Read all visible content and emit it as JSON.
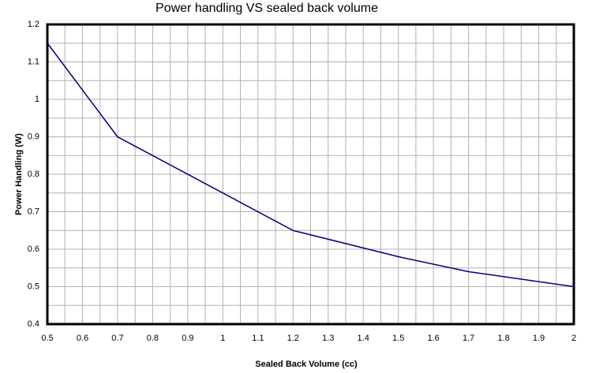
{
  "chart_data": {
    "type": "line",
    "title": "Power handling VS sealed back volume",
    "x_label": "Sealed Back Volume (cc)",
    "y_label": "Power Handling (W)",
    "x": [
      0.5,
      0.7,
      1.2,
      1.5,
      1.7,
      2
    ],
    "series": [
      {
        "name": "Power Handling",
        "color": "#000080",
        "values": [
          1.15,
          0.9,
          0.65,
          0.58,
          0.54,
          0.5
        ]
      }
    ],
    "xlim": [
      0.5,
      2
    ],
    "xticks": [
      0.5,
      0.6,
      0.7,
      0.8,
      0.9,
      1,
      1.1,
      1.2,
      1.3,
      1.4,
      1.5,
      1.6,
      1.7,
      1.8,
      1.9,
      2
    ],
    "ylim": [
      0.4,
      1.2
    ],
    "yticks": [
      0.4,
      0.5,
      0.6,
      0.7,
      0.8,
      0.9,
      1,
      1.1,
      1.2
    ],
    "grid": true
  }
}
